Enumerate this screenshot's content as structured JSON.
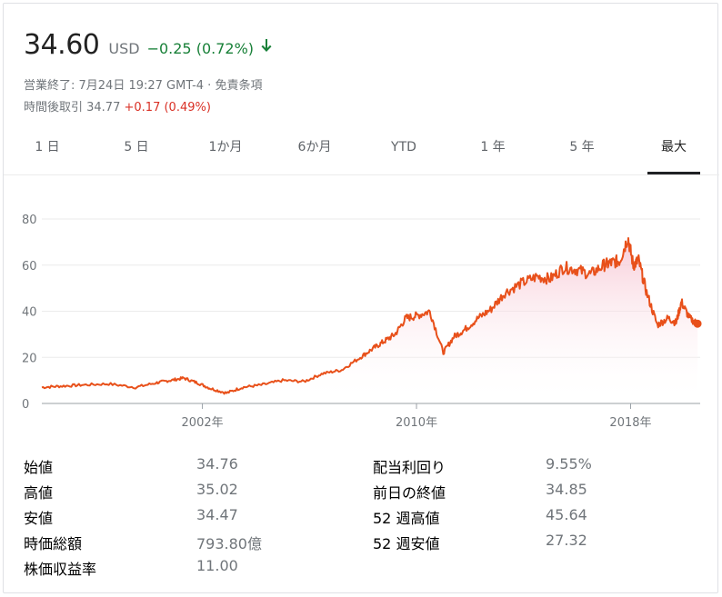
{
  "header": {
    "price": "34.60",
    "currency": "USD",
    "change": "−0.25 (0.72%)",
    "arrow_icon": "arrow-down-icon",
    "status_line": "営業終了: 7月24日 19:27 GMT-4 · 免責条項",
    "after_hours_label": "時間後取引 34.77",
    "after_hours_change": "+0.17 (0.49%)"
  },
  "colors": {
    "positive": "#188038",
    "negative": "#d93025",
    "line": "#e8501a",
    "fill": "#f9d5de"
  },
  "tabs": [
    "1 日",
    "5 日",
    "1か月",
    "6か月",
    "YTD",
    "1 年",
    "5 年",
    "最大"
  ],
  "active_tab": "最大",
  "chart_data": {
    "type": "area",
    "y_ticks": [
      "80",
      "60",
      "40",
      "20",
      "0"
    ],
    "x_ticks": [
      "2002年",
      "2010年",
      "2018年"
    ],
    "ylim": [
      0,
      80
    ],
    "xlim": [
      1996.0,
      2020.6
    ],
    "grid": true,
    "series": [
      {
        "x": [
          1996.0,
          1996.7,
          1997.5,
          1998.5,
          1999.5,
          2000.3,
          2000.8,
          2001.3,
          2001.8,
          2002.3,
          2002.9,
          2003.5,
          2004.2,
          2005.0,
          2005.8,
          2006.5,
          2007.2,
          2007.9,
          2008.4,
          2008.8,
          2009.2,
          2009.6,
          2010.0,
          2010.5,
          2011.0,
          2011.4,
          2011.8,
          2012.3,
          2012.8,
          2013.3,
          2013.9,
          2014.5,
          2015.0,
          2015.5,
          2016.0,
          2016.5,
          2017.0,
          2017.3,
          2017.6,
          2017.9,
          2018.1,
          2018.3,
          2018.6,
          2019.0,
          2019.4,
          2019.7,
          2019.9,
          2020.2,
          2020.5
        ],
        "y": [
          7,
          7.5,
          8,
          8.5,
          7,
          9,
          10,
          11,
          9,
          6.5,
          4.5,
          7,
          8,
          10,
          9.5,
          13,
          14.5,
          20,
          24,
          27,
          30,
          37,
          38,
          40,
          22,
          29,
          32,
          37,
          41,
          48,
          52,
          55,
          54,
          59,
          58,
          56,
          60,
          61,
          62,
          72,
          60,
          62,
          48,
          34,
          37,
          35,
          44,
          37,
          34.6
        ]
      }
    ]
  },
  "stats": {
    "left": [
      {
        "label": "始値",
        "value": "34.76"
      },
      {
        "label": "高値",
        "value": "35.02"
      },
      {
        "label": "安値",
        "value": "34.47"
      },
      {
        "label": "時価総額",
        "value": "793.80億"
      },
      {
        "label": "株価収益率",
        "value": "11.00"
      }
    ],
    "right": [
      {
        "label": "配当利回り",
        "value": "9.55%"
      },
      {
        "label": "前日の終値",
        "value": "34.85"
      },
      {
        "label": "52 週高値",
        "value": "45.64"
      },
      {
        "label": "52 週安値",
        "value": "27.32"
      }
    ]
  }
}
